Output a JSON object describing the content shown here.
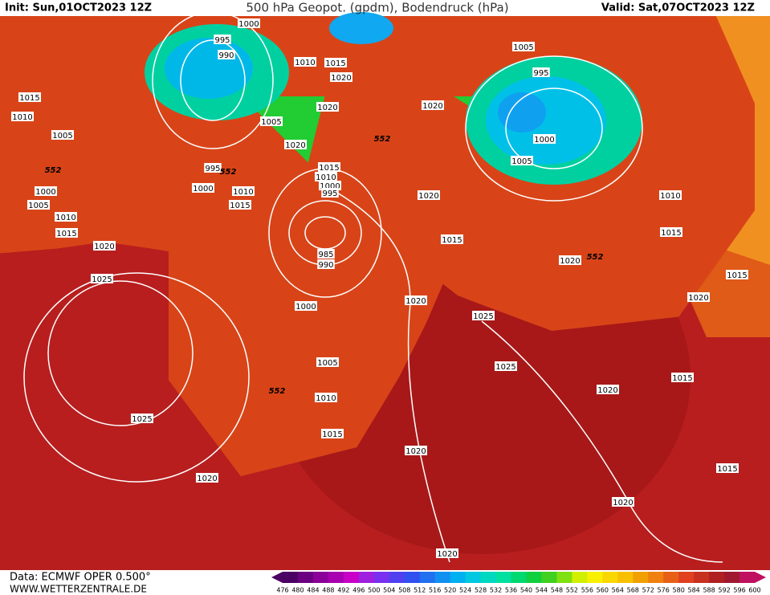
{
  "header": {
    "init": "Init: Sun,01OCT2023 12Z",
    "title": "500 hPa Geopot. (gpdm), Bodendruck (hPa)",
    "valid": "Valid: Sat,07OCT2023 12Z"
  },
  "footer": {
    "source": "Data: ECMWF OPER 0.500°",
    "website": "WWW.WETTERZENTRALE.DE"
  },
  "isobar_labels": [
    "1000",
    "995",
    "990",
    "1010",
    "1015",
    "1020",
    "1015",
    "1020",
    "1020",
    "1010",
    "1005",
    "1005",
    "1020",
    "1005",
    "995",
    "1000",
    "1005",
    "995",
    "1015",
    "1010",
    "1000",
    "995",
    "1000",
    "1010",
    "1000",
    "1020",
    "1010",
    "1005",
    "1015",
    "1010",
    "1015",
    "1015",
    "1015",
    "1020",
    "985",
    "990",
    "1020",
    "1025",
    "1015",
    "1020",
    "1020",
    "1000",
    "1025",
    "1005",
    "1025",
    "1015",
    "1010",
    "1020",
    "1025",
    "1015",
    "1020",
    "1015",
    "1020",
    "1020",
    "1020"
  ],
  "contour_labels": [
    "552",
    "552",
    "552",
    "552",
    "552"
  ],
  "colorbar": {
    "labels": [
      476,
      480,
      484,
      488,
      492,
      496,
      500,
      504,
      508,
      512,
      516,
      520,
      524,
      528,
      532,
      536,
      540,
      544,
      548,
      552,
      556,
      560,
      564,
      568,
      572,
      576,
      580,
      584,
      588,
      592,
      596,
      600
    ],
    "colors": [
      "#4b0063",
      "#6a0080",
      "#8a0099",
      "#a800b0",
      "#c800c8",
      "#a020e0",
      "#7a30f0",
      "#5040f0",
      "#3050f0",
      "#2070f0",
      "#1090f0",
      "#00b0f0",
      "#00c8e0",
      "#00d8c0",
      "#00e0a0",
      "#00d870",
      "#10d040",
      "#40d020",
      "#80e010",
      "#d0f000",
      "#f8f000",
      "#f8d800",
      "#f8c000",
      "#f0a000",
      "#f08010",
      "#e86018",
      "#e04020",
      "#c83020",
      "#b02020",
      "#a01830",
      "#c01060"
    ]
  }
}
